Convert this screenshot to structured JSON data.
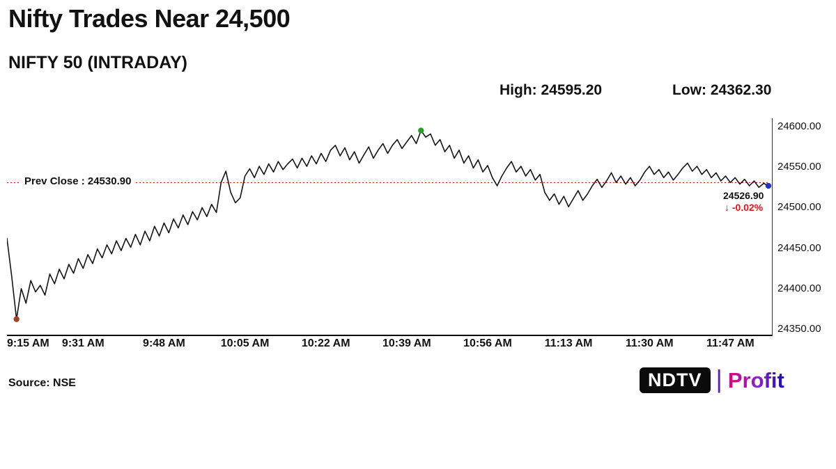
{
  "header": {
    "title": "Nifty Trades Near 24,500",
    "subtitle": "NIFTY 50 (INTRADAY)",
    "high_label": "High: 24595.20",
    "low_label": "Low: 24362.30"
  },
  "annotations": {
    "prev_close": "Prev Close : 24530.90",
    "last_price": "24526.90",
    "change": "↓ -0.02%"
  },
  "footer": {
    "source": "Source: NSE",
    "logo_ndtv": "NDTV",
    "logo_divider": "|",
    "logo_profit": "Profit"
  },
  "colors": {
    "price_line": "#141414",
    "prev_close_line": "#ff0000",
    "change_text": "#e8131a",
    "high_marker": "#2e9b2e",
    "low_marker": "#a0421e",
    "last_marker": "#2233cc"
  },
  "chart_data": {
    "type": "line",
    "title": "NIFTY 50 (INTRADAY)",
    "high": 24595.2,
    "low": 24362.3,
    "prev_close": 24530.9,
    "last": 24526.9,
    "change_pct": -0.02,
    "x_axis": {
      "unit": "minutes since 9:15 AM",
      "range": [
        0,
        160
      ],
      "ticks": [
        {
          "label": "9:15 AM",
          "minute": 0
        },
        {
          "label": "9:31 AM",
          "minute": 16
        },
        {
          "label": "9:48 AM",
          "minute": 33
        },
        {
          "label": "10:05 AM",
          "minute": 50
        },
        {
          "label": "10:22 AM",
          "minute": 67
        },
        {
          "label": "10:39 AM",
          "minute": 84
        },
        {
          "label": "10:56 AM",
          "minute": 101
        },
        {
          "label": "11:13 AM",
          "minute": 118
        },
        {
          "label": "11:30 AM",
          "minute": 135
        },
        {
          "label": "11:47 AM",
          "minute": 152
        }
      ]
    },
    "y_axis": {
      "range": [
        24350,
        24600
      ],
      "ticks": [
        {
          "label": "24600.00",
          "value": 24600
        },
        {
          "label": "24550.00",
          "value": 24550
        },
        {
          "label": "24500.00",
          "value": 24500
        },
        {
          "label": "24450.00",
          "value": 24450
        },
        {
          "label": "24400.00",
          "value": 24400
        },
        {
          "label": "24350.00",
          "value": 24350
        }
      ]
    },
    "markers": [
      {
        "type": "low",
        "index": 2,
        "value": 24362.3
      },
      {
        "type": "high",
        "index": 87,
        "value": 24595.2
      },
      {
        "type": "last",
        "index": 160,
        "value": 24526.9
      }
    ],
    "prices": [
      24462,
      24415,
      24362.3,
      24400,
      24382,
      24410,
      24396,
      24404,
      24392,
      24418,
      24406,
      24424,
      24412,
      24430,
      24419,
      24437,
      24425,
      24442,
      24431,
      24449,
      24438,
      24454,
      24443,
      24459,
      24447,
      24462,
      24451,
      24467,
      24454,
      24471,
      24459,
      24477,
      24465,
      24481,
      24469,
      24486,
      24475,
      24491,
      24479,
      24495,
      24485,
      24500,
      24489,
      24504,
      24494,
      24531,
      24545,
      24519,
      24506,
      24512,
      24539,
      24548,
      24537,
      24551,
      24541,
      24554,
      24544,
      24557,
      24547,
      24554,
      24560,
      24549,
      24561,
      24551,
      24564,
      24554,
      24567,
      24557,
      24571,
      24577,
      24564,
      24574,
      24559,
      24569,
      24555,
      24565,
      24575,
      24561,
      24571,
      24579,
      24567,
      24577,
      24584,
      24573,
      24581,
      24589,
      24579,
      24595.2,
      24587,
      24591,
      24577,
      24584,
      24569,
      24577,
      24561,
      24571,
      24555,
      24564,
      24549,
      24559,
      24544,
      24552,
      24537,
      24527,
      24539,
      24549,
      24557,
      24544,
      24551,
      24539,
      24547,
      24534,
      24541,
      24519,
      24509,
      24517,
      24504,
      24514,
      24501,
      24511,
      24521,
      24509,
      24517,
      24527,
      24535,
      24525,
      24533,
      24543,
      24531,
      24539,
      24529,
      24537,
      24527,
      24534,
      24544,
      24551,
      24541,
      24547,
      24537,
      24544,
      24534,
      24541,
      24549,
      24555,
      24545,
      24551,
      24541,
      24547,
      24537,
      24543,
      24533,
      24539,
      24531,
      24537,
      24529,
      24535,
      24527,
      24533,
      24525,
      24530,
      24526.9
    ]
  }
}
